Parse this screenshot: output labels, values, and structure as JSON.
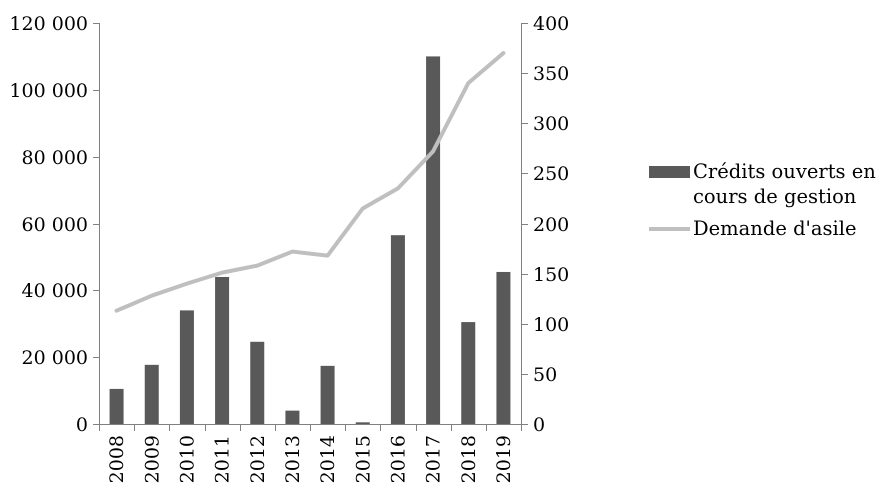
{
  "chart_data": {
    "type": "bar",
    "subtype": "combo-bar-line-dual-axis",
    "categories": [
      "2008",
      "2009",
      "2010",
      "2011",
      "2012",
      "2013",
      "2014",
      "2015",
      "2016",
      "2017",
      "2018",
      "2019"
    ],
    "series": [
      {
        "name": "Crédits ouverts en cours de gestion",
        "type": "bar",
        "axis": "left",
        "color": "#595959",
        "values": [
          10500,
          17700,
          34000,
          44000,
          24600,
          4000,
          17400,
          500,
          56500,
          110000,
          30500,
          45500
        ]
      },
      {
        "name": "Demande d'asile",
        "type": "line",
        "axis": "right",
        "color": "#bfbfbf",
        "values": [
          113,
          128,
          140,
          151,
          158,
          172,
          168,
          215,
          235,
          272,
          340,
          370
        ]
      }
    ],
    "left_axis": {
      "min": 0,
      "max": 120000,
      "step": 20000,
      "tick_labels": [
        "0",
        "20 000",
        "40 000",
        "60 000",
        "80 000",
        "100 000",
        "120 000"
      ]
    },
    "right_axis": {
      "min": 0,
      "max": 400,
      "step": 50,
      "tick_labels": [
        "0",
        "50",
        "100",
        "150",
        "200",
        "250",
        "300",
        "350",
        "400"
      ]
    },
    "title": "",
    "xlabel": "",
    "ylabel": "",
    "grid": false,
    "legend_position": "right",
    "x_tick_rotation": 90
  },
  "legend": {
    "items": [
      {
        "label": "Crédits ouverts en cours de gestion",
        "swatch": "rect",
        "color": "#595959"
      },
      {
        "label": "Demande d'asile",
        "swatch": "line",
        "color": "#bfbfbf"
      }
    ]
  },
  "colors": {
    "bar": "#595959",
    "line": "#bfbfbf",
    "axis": "#808080",
    "text": "#000000",
    "background": "#ffffff"
  }
}
